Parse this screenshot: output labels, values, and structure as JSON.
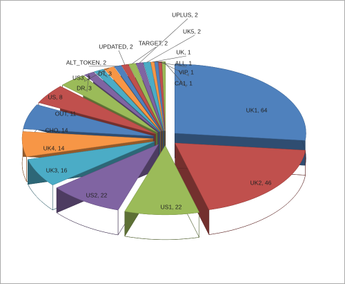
{
  "chart_data": {
    "type": "pie",
    "value_labels": [
      "UK1, 64",
      "UK2, 46",
      "US1, 22",
      "US2, 22",
      "UK3, 16",
      "UK4, 14",
      "CHO, 14",
      "OUT, 11",
      "US, 8",
      "DR, 3",
      "DT, 3",
      "US3, 3",
      "ALT_TOKEN, 2",
      "UPDATED, 2",
      "TARGET, 2",
      "UPLUS, 2",
      "UK5, 2",
      "UK, 1",
      "ALL, 1",
      "VIP, 1",
      "CA1, 1"
    ],
    "values": [
      64,
      46,
      22,
      22,
      16,
      14,
      14,
      11,
      8,
      3,
      3,
      3,
      2,
      2,
      2,
      2,
      2,
      1,
      1,
      1,
      1
    ],
    "colors": [
      "#4f81bd",
      "#c0504d",
      "#9bbb59",
      "#8064a2",
      "#4bacc6",
      "#f79646",
      "#4f81bd",
      "#c0504d",
      "#9bbb59",
      "#8064a2",
      "#4bacc6",
      "#f79646",
      "#4f81bd",
      "#c0504d",
      "#9bbb59",
      "#8064a2",
      "#4bacc6",
      "#f79646",
      "#4f81bd",
      "#c0504d",
      "#9bbb59"
    ]
  }
}
